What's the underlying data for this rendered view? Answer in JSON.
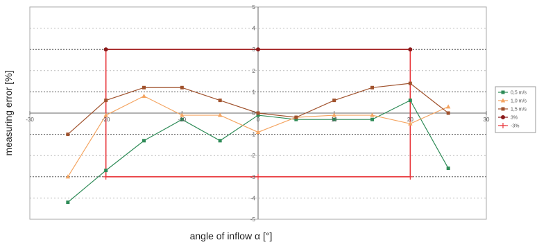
{
  "chart_data": {
    "type": "line",
    "xlabel": "angle of inflow α [°]",
    "ylabel": "measuring error [%]",
    "xlim": [
      -30,
      30
    ],
    "ylim": [
      -5,
      5
    ],
    "x_ticks": [
      "-30",
      "-20",
      "-10",
      "0",
      "10",
      "20",
      "30"
    ],
    "y_ticks": [
      "5",
      "4",
      "3",
      "2",
      "1",
      "0",
      "-1",
      "-2",
      "-3",
      "-4",
      "-5"
    ],
    "grid": "horizontal dashed",
    "legend_position": "right",
    "series": [
      {
        "name": "0,5 m/s",
        "color": "#2e8b57",
        "marker": "square",
        "points": [
          [
            -25,
            -4.2
          ],
          [
            -20,
            -2.7
          ],
          [
            -15,
            -1.3
          ],
          [
            -10,
            -0.3
          ],
          [
            -5,
            -1.3
          ],
          [
            0,
            -0.1
          ],
          [
            5,
            -0.3
          ],
          [
            10,
            -0.3
          ],
          [
            15,
            -0.3
          ],
          [
            20,
            0.6
          ],
          [
            25,
            -2.6
          ]
        ]
      },
      {
        "name": "1,0 m/s",
        "color": "#f4a460",
        "marker": "triangle",
        "points": [
          [
            -25,
            -3.0
          ],
          [
            -20,
            -0.1
          ],
          [
            -15,
            0.8
          ],
          [
            -10,
            -0.1
          ],
          [
            -5,
            -0.1
          ],
          [
            0,
            -0.9
          ],
          [
            5,
            -0.2
          ],
          [
            10,
            -0.1
          ],
          [
            15,
            -0.1
          ],
          [
            20,
            -0.5
          ],
          [
            25,
            0.3
          ]
        ]
      },
      {
        "name": "1,5 m/s",
        "color": "#a0522d",
        "marker": "square",
        "points": [
          [
            -25,
            -1.0
          ],
          [
            -20,
            0.6
          ],
          [
            -15,
            1.2
          ],
          [
            -10,
            1.2
          ],
          [
            -5,
            0.6
          ],
          [
            0,
            0.0
          ],
          [
            5,
            -0.2
          ],
          [
            10,
            0.6
          ],
          [
            15,
            1.2
          ],
          [
            20,
            1.4
          ],
          [
            25,
            0.0
          ]
        ]
      },
      {
        "name": "3%",
        "color": "#8b1a1a",
        "marker": "dot",
        "points": [
          [
            -20,
            3
          ],
          [
            0,
            3
          ],
          [
            20,
            3
          ]
        ]
      },
      {
        "name": "-3%",
        "color": "#e8363b",
        "marker": "plus",
        "points": [
          [
            -20,
            -3
          ],
          [
            0,
            -3
          ],
          [
            20,
            -3
          ]
        ]
      }
    ],
    "box": {
      "name": "±3% limit",
      "color": "#e8363b",
      "x": [
        -20,
        20
      ],
      "y": [
        -3,
        3
      ]
    }
  }
}
